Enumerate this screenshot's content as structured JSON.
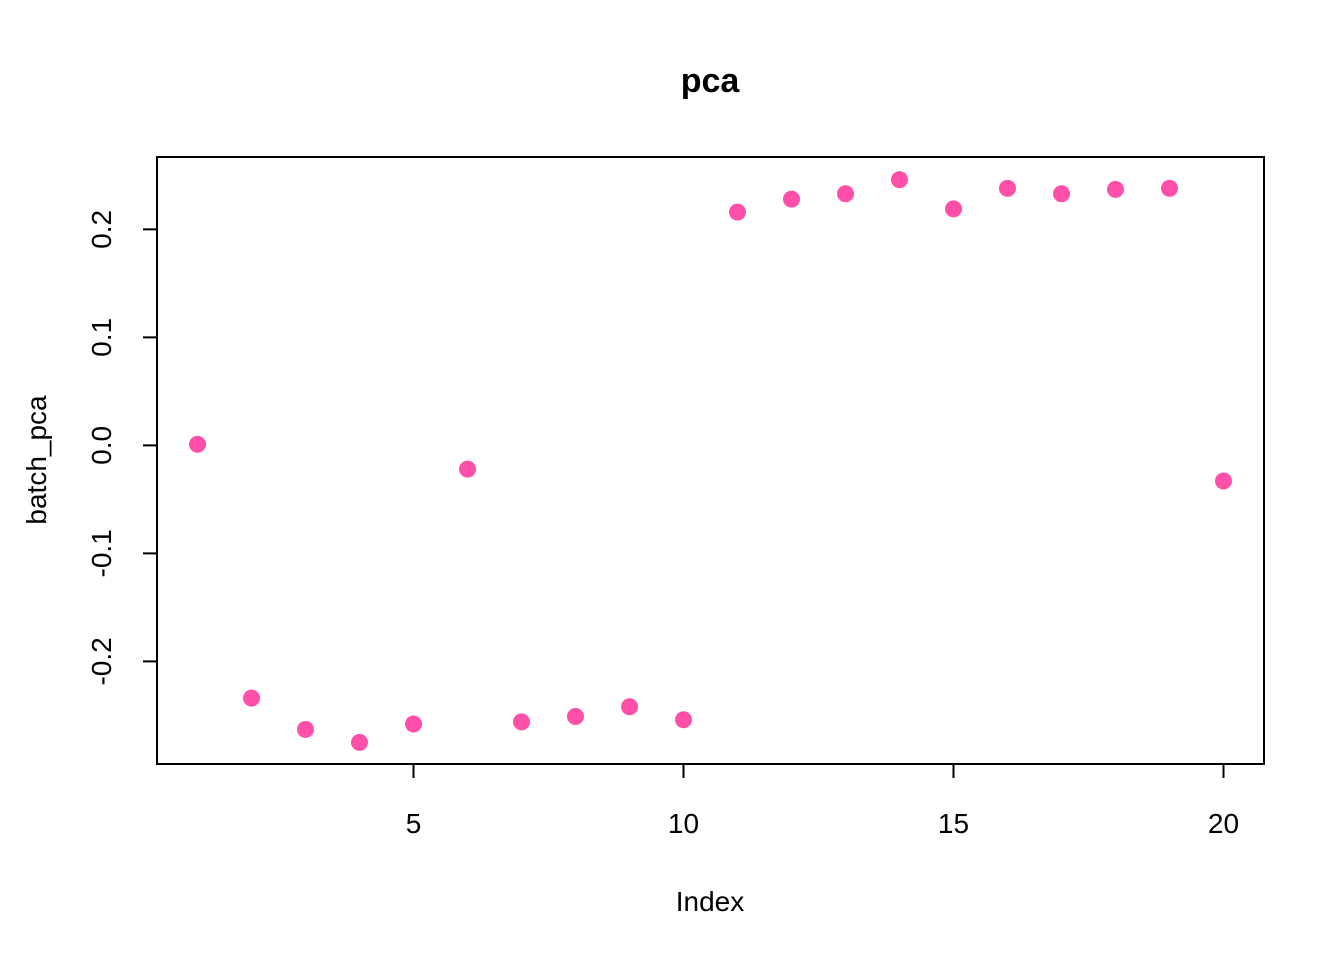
{
  "chart_data": {
    "type": "scatter",
    "title": "pca",
    "xlabel": "Index",
    "ylabel": "batch_pca",
    "xlim": [
      0.25,
      20.75
    ],
    "ylim": [
      -0.295,
      0.267
    ],
    "x_ticks": [
      5,
      10,
      15,
      20
    ],
    "x_tick_labels": [
      "5",
      "10",
      "15",
      "20"
    ],
    "y_ticks": [
      -0.2,
      -0.1,
      0.0,
      0.1,
      0.2
    ],
    "y_tick_labels": [
      "-0.2",
      "-0.1",
      "0.0",
      "0.1",
      "0.2"
    ],
    "grid": false,
    "point_color": "#FF4FA8",
    "x": [
      1,
      2,
      3,
      4,
      5,
      6,
      7,
      8,
      9,
      10,
      11,
      12,
      13,
      14,
      15,
      16,
      17,
      18,
      19,
      20
    ],
    "y": [
      0.001,
      -0.234,
      -0.263,
      -0.275,
      -0.258,
      -0.022,
      -0.256,
      -0.251,
      -0.242,
      -0.254,
      0.216,
      0.228,
      0.233,
      0.246,
      0.219,
      0.238,
      0.233,
      0.237,
      0.238,
      -0.033
    ]
  }
}
